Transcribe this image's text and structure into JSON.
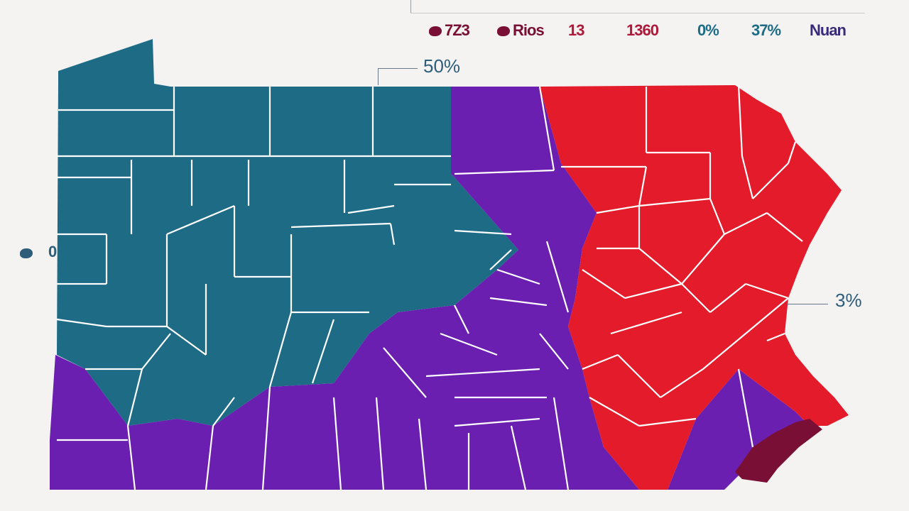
{
  "colors": {
    "teal": "#1e6b86",
    "purple": "#6a1fb0",
    "red": "#e31b2b",
    "maroon": "#7a0f35",
    "border": "#ffffff",
    "background": "#f4f3f2"
  },
  "legend": [
    {
      "icon": "blob-icon",
      "text": "7Z3",
      "color": "#7a0f35"
    },
    {
      "icon": "blob-icon",
      "text": "Rios",
      "color": "#7a0f35"
    },
    {
      "icon": "",
      "text": "13",
      "color": "#b0183a"
    },
    {
      "icon": "",
      "text": "1360",
      "color": "#b0183a"
    },
    {
      "icon": "",
      "text": "0%",
      "color": "#1e6b86"
    },
    {
      "icon": "",
      "text": "37%",
      "color": "#1e6b86"
    },
    {
      "icon": "",
      "text": "Nuan",
      "color": "#3a2a7a"
    }
  ],
  "callouts": {
    "north": "50%",
    "east": "3%",
    "west": "0"
  }
}
